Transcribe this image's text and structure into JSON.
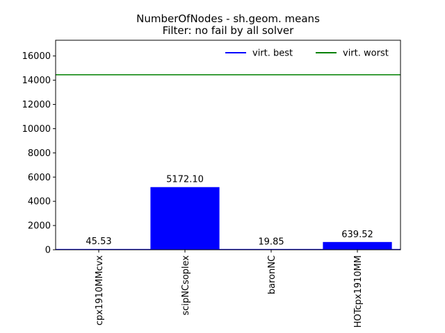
{
  "chart_data": {
    "type": "bar",
    "title": "NumberOfNodes - sh.geom. means",
    "subtitle": "Filter: no fail by all solver",
    "categories": [
      "cpx1910MMcvx",
      "scipNCsoplex",
      "baronNC",
      "HOTcpx1910MM"
    ],
    "values": [
      45.53,
      5172.1,
      19.85,
      639.52
    ],
    "value_labels": [
      "45.53",
      "5172.10",
      "19.85",
      "639.52"
    ],
    "bar_color": "#0000ff",
    "ylim": [
      0,
      17300
    ],
    "yticks": [
      0,
      2000,
      4000,
      6000,
      8000,
      10000,
      12000,
      14000,
      16000
    ],
    "reference_lines": [
      {
        "name": "virt. best",
        "value": 19.85,
        "color": "#0000ff"
      },
      {
        "name": "virt. worst",
        "value": 14450,
        "color": "#008000"
      }
    ],
    "legend_position": "top-right",
    "grid": false
  }
}
